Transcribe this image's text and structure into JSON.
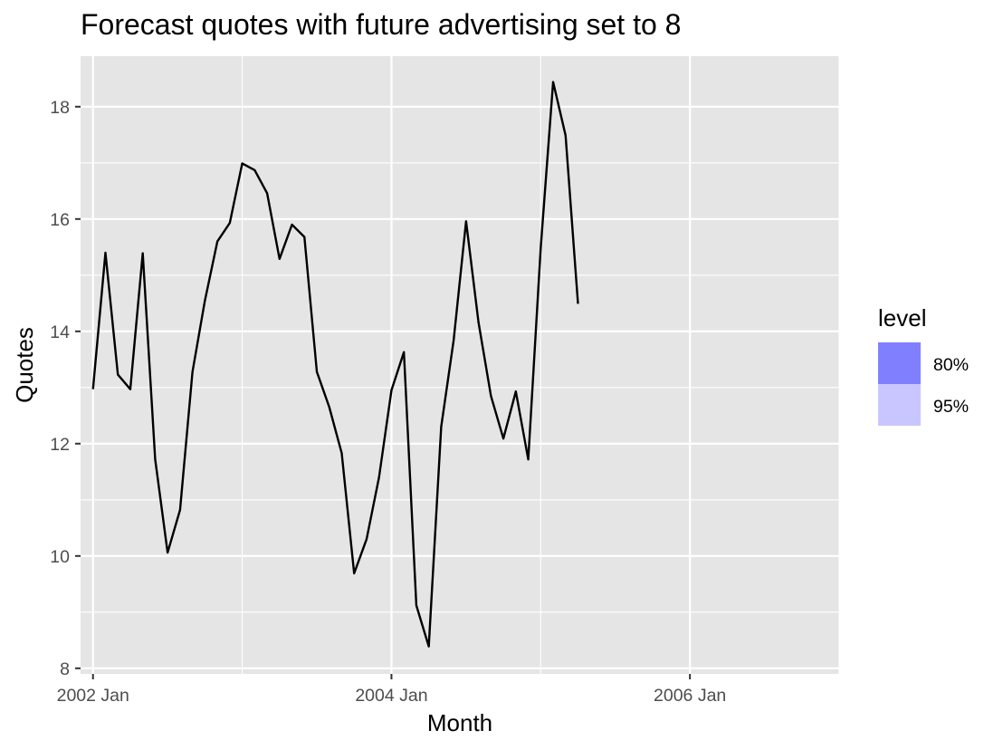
{
  "chart_data": {
    "type": "line",
    "title": "Forecast quotes with future advertising set to 8",
    "xlabel": "Month",
    "ylabel": "Quotes",
    "x_ticks": [
      "2002 Jan",
      "2004 Jan",
      "2006 Jan"
    ],
    "y_ticks": [
      8,
      10,
      12,
      14,
      16,
      18
    ],
    "xlim": [
      "2001 Dec",
      "2007 Jan"
    ],
    "ylim": [
      7.9,
      18.9
    ],
    "grid": true,
    "legend": {
      "title": "level",
      "position": "right",
      "items": [
        {
          "label": "80%",
          "color": "#8080ff"
        },
        {
          "label": "95%",
          "color": "#c9c6ff"
        }
      ]
    },
    "series": [
      {
        "color": "#000000",
        "x": [
          "2002 Jan",
          "2002 Feb",
          "2002 Mar",
          "2002 Apr",
          "2002 May",
          "2002 Jun",
          "2002 Jul",
          "2002 Aug",
          "2002 Sep",
          "2002 Oct",
          "2002 Nov",
          "2002 Dec",
          "2003 Jan",
          "2003 Feb",
          "2003 Mar",
          "2003 Apr",
          "2003 May",
          "2003 Jun",
          "2003 Jul",
          "2003 Aug",
          "2003 Sep",
          "2003 Oct",
          "2003 Nov",
          "2003 Dec",
          "2004 Jan",
          "2004 Feb",
          "2004 Mar",
          "2004 Apr",
          "2004 May",
          "2004 Jun",
          "2004 Jul",
          "2004 Aug",
          "2004 Sep",
          "2004 Oct",
          "2004 Nov",
          "2004 Dec",
          "2005 Jan",
          "2005 Feb",
          "2005 Mar",
          "2005 Apr"
        ],
        "values": [
          12.97,
          15.4,
          13.23,
          12.97,
          15.39,
          11.72,
          10.06,
          10.82,
          13.28,
          14.55,
          15.6,
          15.93,
          16.99,
          16.87,
          16.46,
          15.29,
          15.9,
          15.68,
          13.28,
          12.65,
          11.83,
          9.69,
          10.3,
          11.4,
          12.95,
          13.63,
          9.12,
          8.39,
          12.3,
          13.84,
          15.96,
          14.16,
          12.85,
          12.09,
          12.93,
          11.72,
          15.48,
          18.44,
          17.49,
          14.49
        ]
      }
    ]
  },
  "colors": {
    "panel_background": "#e5e5e5",
    "grid_major": "#ffffff",
    "line": "#000000"
  }
}
